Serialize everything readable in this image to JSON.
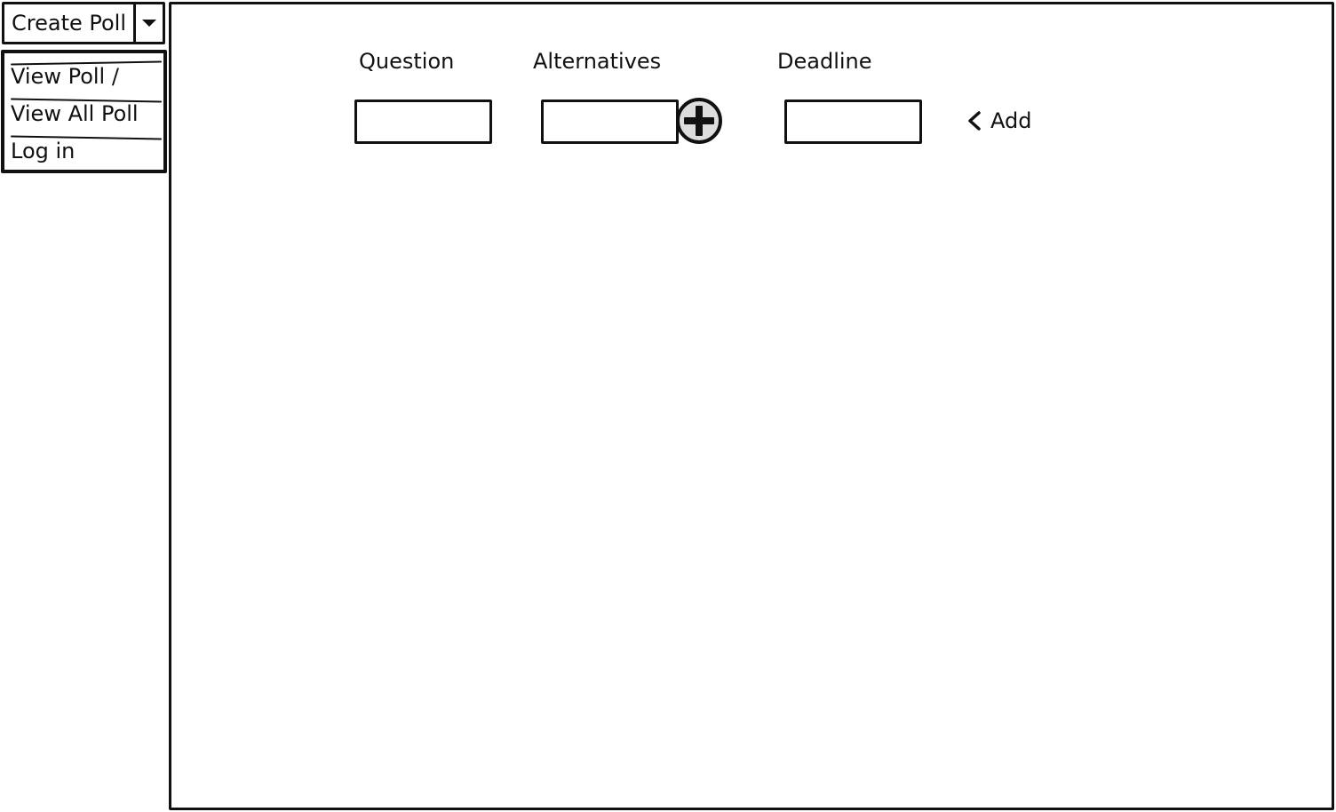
{
  "nav": {
    "selected": "Create Poll",
    "menu_items": [
      "View Poll /",
      "View All Poll",
      "Log in"
    ]
  },
  "form": {
    "question_label": "Question",
    "alternatives_label": "Alternatives",
    "deadline_label": "Deadline",
    "question_value": "",
    "alternatives_value": "",
    "deadline_value": "",
    "add_alternative_icon": "plus-circle-icon",
    "add_label": "Add",
    "add_icon": "chevron-left-icon"
  },
  "colors": {
    "ink": "#111111",
    "paper": "#ffffff",
    "plus_fill": "#dddddd"
  }
}
